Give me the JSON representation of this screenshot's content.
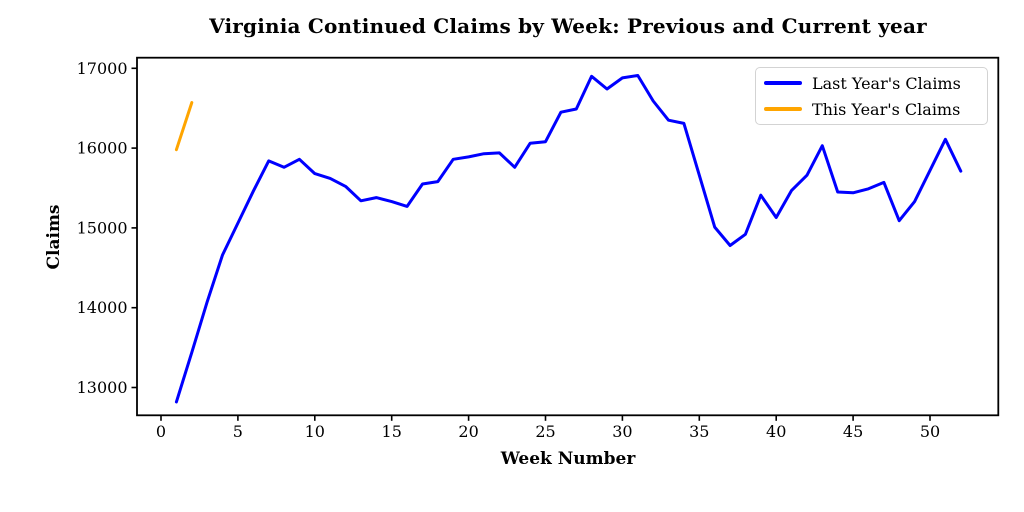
{
  "chart_data": {
    "type": "line",
    "title": "Virginia Continued Claims by Week: Previous and Current year",
    "xlabel": "Week Number",
    "ylabel": "Claims",
    "x_ticks": [
      0,
      5,
      10,
      15,
      20,
      25,
      30,
      35,
      40,
      45,
      50
    ],
    "y_ticks": [
      13000,
      14000,
      15000,
      16000,
      17000
    ],
    "xlim": [
      -1.6,
      54.4
    ],
    "ylim": [
      12600,
      17150
    ],
    "grid": false,
    "legend_position": "upper right",
    "colors": {
      "axis": "#000000",
      "tick_text": "#000000",
      "legend_border": "#d3d3d3",
      "last_year": "#0000ff",
      "this_year": "#ffa500"
    },
    "series": [
      {
        "name": "Last Year's Claims",
        "color": "#0000ff",
        "x": [
          1,
          2,
          3,
          4,
          5,
          6,
          7,
          8,
          9,
          10,
          11,
          12,
          13,
          14,
          15,
          16,
          17,
          18,
          19,
          20,
          21,
          22,
          23,
          24,
          25,
          26,
          27,
          28,
          29,
          30,
          31,
          32,
          33,
          34,
          35,
          36,
          37,
          38,
          39,
          40,
          41,
          42,
          43,
          44,
          45,
          46,
          47,
          48,
          49,
          50,
          51,
          52
        ],
        "values": [
          12820,
          13440,
          14070,
          14660,
          15060,
          15460,
          15840,
          15760,
          15860,
          15680,
          15620,
          15520,
          15340,
          15380,
          15330,
          15270,
          15550,
          15580,
          15860,
          15890,
          15930,
          15940,
          15760,
          16060,
          16080,
          16450,
          16490,
          16900,
          16740,
          16880,
          16910,
          16590,
          16350,
          16310,
          15660,
          15010,
          14780,
          14920,
          15410,
          15130,
          15470,
          15660,
          16030,
          15450,
          15440,
          15490,
          15570,
          15090,
          15330,
          15720,
          16110,
          15710
        ]
      },
      {
        "name": "This Year's Claims",
        "color": "#ffa500",
        "x": [
          1,
          2
        ],
        "values": [
          15980,
          16570
        ]
      }
    ]
  }
}
